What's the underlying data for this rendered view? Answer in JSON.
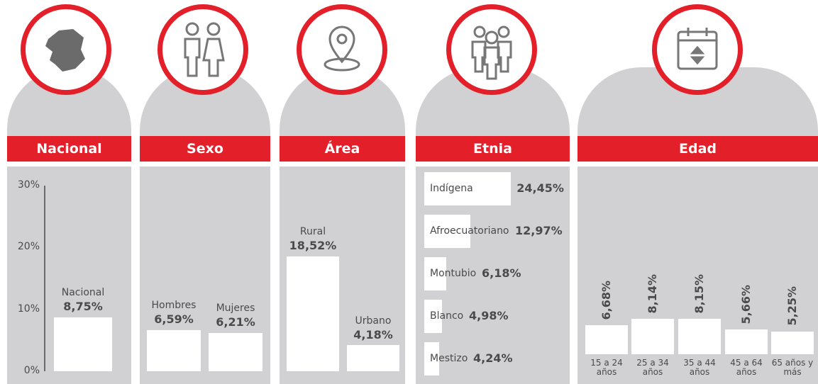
{
  "chart_data": [
    {
      "type": "bar",
      "title": "Nacional",
      "categories": [
        "Nacional"
      ],
      "values": [
        8.75
      ],
      "value_labels": [
        "8,75%"
      ],
      "color": "#ffffff",
      "ylim": [
        0,
        30
      ],
      "yticks": [
        {
          "value": 0,
          "label": "0%"
        },
        {
          "value": 10,
          "label": "10%"
        },
        {
          "value": 20,
          "label": "20%"
        },
        {
          "value": 30,
          "label": "30%"
        }
      ]
    },
    {
      "type": "bar",
      "title": "Sexo",
      "categories": [
        "Hombres",
        "Mujeres"
      ],
      "values": [
        6.59,
        6.21
      ],
      "value_labels": [
        "6,59%",
        "6,21%"
      ],
      "color": "#ffffff",
      "ylim": [
        0,
        30
      ]
    },
    {
      "type": "bar",
      "title": "Área",
      "categories": [
        "Rural",
        "Urbano"
      ],
      "values": [
        18.52,
        4.18
      ],
      "value_labels": [
        "18,52%",
        "4,18%"
      ],
      "color": "#ffffff",
      "ylim": [
        0,
        30
      ]
    },
    {
      "type": "bar",
      "orientation": "horizontal",
      "title": "Etnia",
      "categories": [
        "Indígena",
        "Afroecuatoriano",
        "Montubio",
        "Blanco",
        "Mestizo"
      ],
      "values": [
        24.45,
        12.97,
        6.18,
        4.98,
        4.24
      ],
      "value_labels": [
        "24,45%",
        "12,97%",
        "6,18%",
        "4,98%",
        "4,24%"
      ],
      "color": "#ffffff",
      "xlim": [
        0,
        30
      ]
    },
    {
      "type": "bar",
      "title": "Edad",
      "categories": [
        "15 a 24 años",
        "25 a 34 años",
        "35 a 44 años",
        "45 a 64 años",
        "65 años y más"
      ],
      "values": [
        6.68,
        8.14,
        8.15,
        5.66,
        5.25
      ],
      "value_labels": [
        "6,68%",
        "8,14%",
        "8,15%",
        "5,66%",
        "5,25%"
      ],
      "color": "#ffffff",
      "ylim": [
        0,
        40
      ]
    }
  ]
}
